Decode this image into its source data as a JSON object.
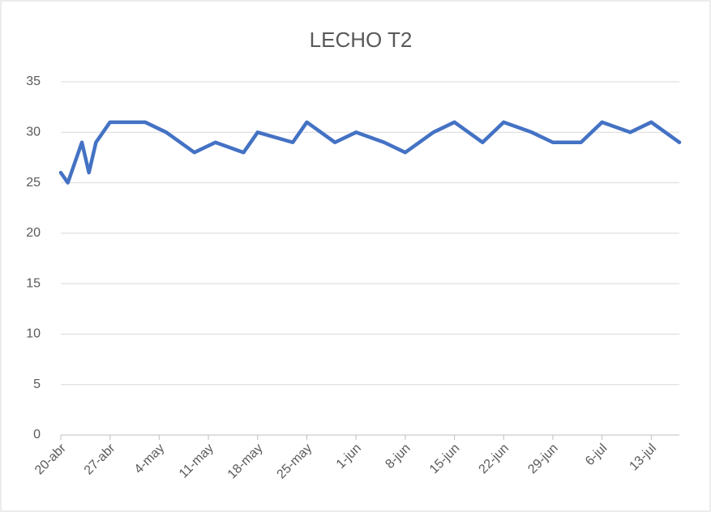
{
  "chart_data": {
    "type": "line",
    "title": "LECHO T2",
    "x": [
      "20-abr",
      "21-abr",
      "23-abr",
      "24-abr",
      "25-abr",
      "27-abr",
      "2-may",
      "5-may",
      "9-may",
      "12-may",
      "16-may",
      "18-may",
      "23-may",
      "25-may",
      "29-may",
      "1-jun",
      "5-jun",
      "8-jun",
      "12-jun",
      "15-jun",
      "19-jun",
      "22-jun",
      "26-jun",
      "29-jun",
      "3-jul",
      "6-jul",
      "10-jul",
      "13-jul",
      "17-jul"
    ],
    "series": [
      {
        "name": "LECHO T2",
        "color": "#4472c4",
        "values": [
          26,
          25,
          29,
          26,
          29,
          31,
          31,
          30,
          28,
          29,
          28,
          30,
          29,
          31,
          29,
          30,
          29,
          28,
          30,
          31,
          29,
          31,
          30,
          29,
          29,
          31,
          30,
          31,
          29
        ]
      }
    ],
    "xlim": [
      "20-abr",
      "17-jul"
    ],
    "xticks": [
      "20-abr",
      "27-abr",
      "4-may",
      "11-may",
      "18-may",
      "25-may",
      "1-jun",
      "8-jun",
      "15-jun",
      "22-jun",
      "29-jun",
      "6-jul",
      "13-jul"
    ],
    "ylim": [
      0,
      35
    ],
    "yticks": [
      0,
      5,
      10,
      15,
      20,
      25,
      30,
      35
    ],
    "grid": true
  }
}
